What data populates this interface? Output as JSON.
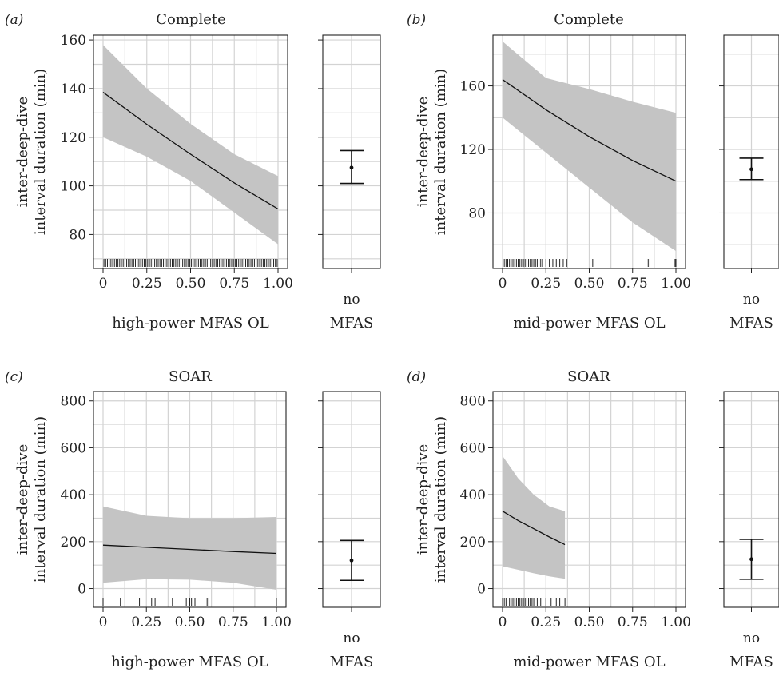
{
  "chart_data": [
    {
      "panel": "(a)",
      "title": "Complete",
      "type": "line",
      "xlabel": "high-power MFAS OL",
      "ylabel_line1": "inter-deep-dive",
      "ylabel_line2": "interval duration (min)",
      "xlim": [
        0,
        1
      ],
      "ylim": [
        66,
        162
      ],
      "xticks": [
        0,
        0.25,
        0.5,
        0.75,
        1.0
      ],
      "xtick_labels": [
        "0",
        "0.25",
        "0.50",
        "0.75",
        "1.00"
      ],
      "yticks": [
        80,
        100,
        120,
        140,
        160
      ],
      "ytick_labels": [
        "80",
        "100",
        "120",
        "140",
        "160"
      ],
      "x": [
        0,
        0.25,
        0.5,
        0.75,
        1.0
      ],
      "fit": [
        138.5,
        125.3,
        113.0,
        101.2,
        90.5
      ],
      "lower": [
        120,
        112,
        102,
        89,
        76
      ],
      "upper": [
        158,
        140,
        125.5,
        113,
        104
      ],
      "rug": [
        0.005,
        0.015,
        0.025,
        0.035,
        0.045,
        0.055,
        0.065,
        0.075,
        0.085,
        0.095,
        0.105,
        0.115,
        0.125,
        0.135,
        0.145,
        0.155,
        0.165,
        0.175,
        0.185,
        0.195,
        0.205,
        0.215,
        0.225,
        0.235,
        0.245,
        0.255,
        0.265,
        0.275,
        0.285,
        0.295,
        0.305,
        0.315,
        0.325,
        0.335,
        0.345,
        0.355,
        0.365,
        0.375,
        0.385,
        0.395,
        0.405,
        0.415,
        0.425,
        0.435,
        0.445,
        0.455,
        0.465,
        0.475,
        0.485,
        0.495,
        0.505,
        0.515,
        0.525,
        0.535,
        0.545,
        0.555,
        0.565,
        0.575,
        0.585,
        0.595,
        0.605,
        0.615,
        0.625,
        0.635,
        0.645,
        0.655,
        0.665,
        0.675,
        0.685,
        0.695,
        0.705,
        0.715,
        0.725,
        0.735,
        0.745,
        0.755,
        0.765,
        0.775,
        0.785,
        0.795,
        0.805,
        0.815,
        0.825,
        0.835,
        0.845,
        0.855,
        0.865,
        0.875,
        0.885,
        0.895,
        0.905,
        0.915,
        0.925,
        0.935,
        0.945,
        0.955,
        0.965,
        0.975,
        0.985,
        0.995
      ],
      "no_mfas": {
        "label_line1": "no",
        "label_line2": "MFAS",
        "estimate": 107.5,
        "lower": 101,
        "upper": 114.5
      }
    },
    {
      "panel": "(b)",
      "title": "Complete",
      "type": "line",
      "xlabel": "mid-power MFAS OL",
      "ylabel_line1": "inter-deep-dive",
      "ylabel_line2": "interval duration (min)",
      "xlim": [
        0,
        1
      ],
      "ylim": [
        45,
        192
      ],
      "xticks": [
        0,
        0.25,
        0.5,
        0.75,
        1.0
      ],
      "xtick_labels": [
        "0",
        "0.25",
        "0.50",
        "0.75",
        "1.00"
      ],
      "yticks": [
        80,
        120,
        160
      ],
      "ytick_labels": [
        "80",
        "120",
        "160"
      ],
      "x": [
        0,
        0.25,
        0.5,
        0.75,
        1.0
      ],
      "fit": [
        164,
        145,
        128,
        113,
        100
      ],
      "lower": [
        140,
        118,
        96,
        74,
        56
      ],
      "upper": [
        188,
        165,
        158,
        150,
        143
      ],
      "rug": [
        0.01,
        0.02,
        0.03,
        0.04,
        0.05,
        0.06,
        0.07,
        0.08,
        0.09,
        0.1,
        0.11,
        0.12,
        0.13,
        0.14,
        0.15,
        0.16,
        0.17,
        0.18,
        0.19,
        0.2,
        0.21,
        0.22,
        0.23,
        0.25,
        0.27,
        0.29,
        0.31,
        0.33,
        0.35,
        0.37,
        0.52,
        0.84,
        0.85,
        0.995,
        1.0
      ],
      "no_mfas": {
        "label_line1": "no",
        "label_line2": "MFAS",
        "estimate": 107.5,
        "lower": 101,
        "upper": 114.5
      }
    },
    {
      "panel": "(c)",
      "title": "SOAR",
      "type": "line",
      "xlabel": "high-power MFAS OL",
      "ylabel_line1": "inter-deep-dive",
      "ylabel_line2": "interval duration (min)",
      "xlim": [
        0,
        1
      ],
      "ylim": [
        -80,
        840
      ],
      "xticks": [
        0,
        0.25,
        0.5,
        0.75,
        1.0
      ],
      "xtick_labels": [
        "0",
        "0.25",
        "0.50",
        "0.75",
        "1.00"
      ],
      "yticks": [
        0,
        200,
        400,
        600,
        800
      ],
      "ytick_labels": [
        "0",
        "200",
        "400",
        "600",
        "800"
      ],
      "x": [
        0,
        0.25,
        0.5,
        0.75,
        1.0
      ],
      "fit": [
        185,
        176,
        167,
        158,
        150
      ],
      "lower": [
        25,
        40,
        38,
        25,
        -5
      ],
      "upper": [
        350,
        310,
        300,
        300,
        305
      ],
      "rug": [
        0.0,
        0.1,
        0.21,
        0.28,
        0.3,
        0.4,
        0.48,
        0.5,
        0.51,
        0.53,
        0.6,
        0.61,
        1.0
      ],
      "no_mfas": {
        "label_line1": "no",
        "label_line2": "MFAS",
        "estimate": 120,
        "lower": 35,
        "upper": 205
      }
    },
    {
      "panel": "(d)",
      "title": "SOAR",
      "type": "line",
      "xlabel": "mid-power MFAS OL",
      "ylabel_line1": "inter-deep-dive",
      "ylabel_line2": "interval duration (min)",
      "xlim": [
        0,
        1
      ],
      "ylim": [
        -80,
        840
      ],
      "xticks": [
        0,
        0.25,
        0.5,
        0.75,
        1.0
      ],
      "xtick_labels": [
        "0",
        "0.25",
        "0.50",
        "0.75",
        "1.00"
      ],
      "yticks": [
        0,
        200,
        400,
        600,
        800
      ],
      "ytick_labels": [
        "0",
        "200",
        "400",
        "600",
        "800"
      ],
      "x": [
        0,
        0.09,
        0.18,
        0.27,
        0.36
      ],
      "fit": [
        330,
        290,
        255,
        220,
        187
      ],
      "lower": [
        95,
        80,
        65,
        52,
        42
      ],
      "upper": [
        565,
        470,
        400,
        350,
        330
      ],
      "rug": [
        0.0,
        0.01,
        0.02,
        0.04,
        0.05,
        0.06,
        0.07,
        0.08,
        0.09,
        0.1,
        0.11,
        0.12,
        0.13,
        0.14,
        0.15,
        0.16,
        0.17,
        0.18,
        0.2,
        0.22,
        0.25,
        0.28,
        0.31,
        0.33,
        0.36
      ],
      "no_mfas": {
        "label_line1": "no",
        "label_line2": "MFAS",
        "estimate": 125,
        "lower": 40,
        "upper": 210
      }
    }
  ]
}
